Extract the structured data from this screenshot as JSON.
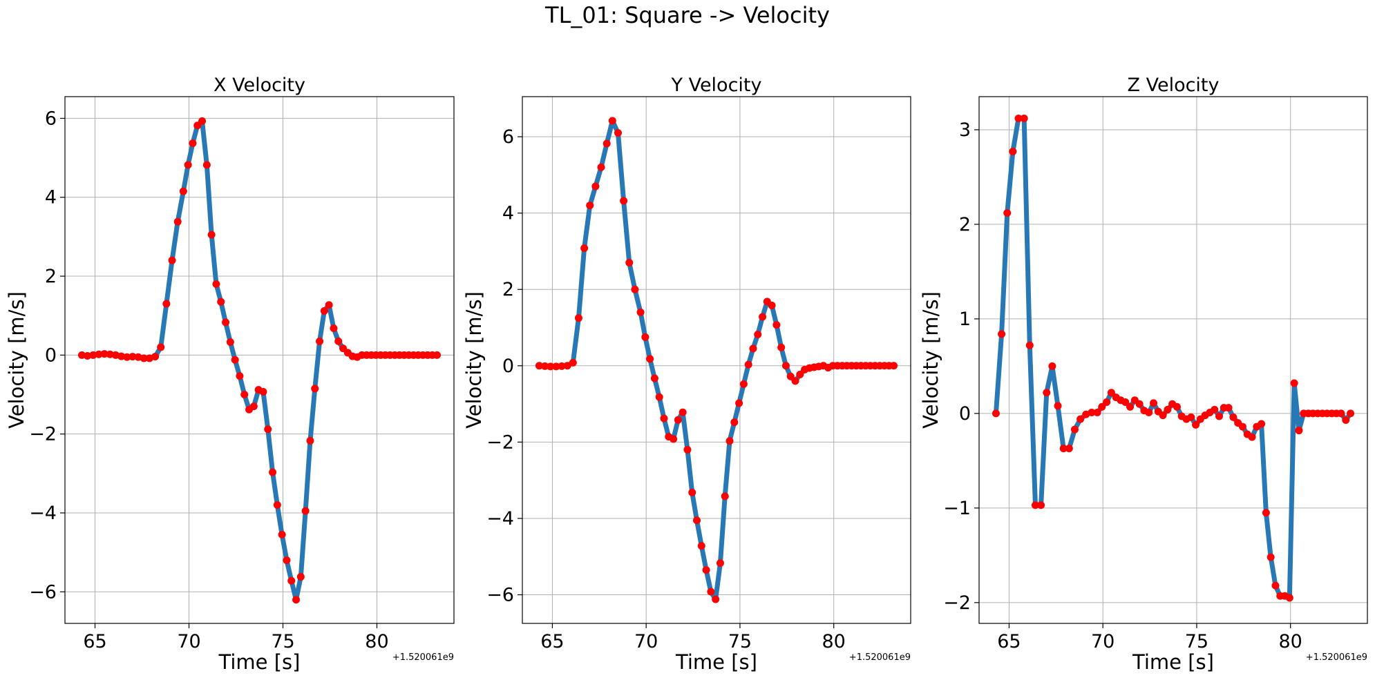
{
  "figure": {
    "suptitle": "TL_01: Square -> Velocity"
  },
  "chart_data": [
    {
      "type": "line",
      "title": "X Velocity",
      "xlabel": "Time [s]",
      "ylabel": "Velocity [m/s]",
      "x_offset_label": "+1.520061e9",
      "xlim": [
        63.4,
        84.1
      ],
      "ylim": [
        -6.8,
        6.55
      ],
      "xticks": [
        65,
        70,
        75,
        80
      ],
      "yticks": [
        -6,
        -4,
        -2,
        0,
        2,
        4,
        6
      ],
      "grid": true,
      "colors": {
        "line": "#2878b5",
        "marker": "#ff0000"
      },
      "x": [
        64.3,
        64.6,
        64.9,
        65.2,
        65.5,
        65.8,
        66.1,
        66.4,
        66.7,
        67.0,
        67.3,
        67.6,
        67.9,
        68.2,
        68.5,
        68.8,
        69.1,
        69.4,
        69.7,
        69.95,
        70.2,
        70.45,
        70.7,
        70.95,
        71.2,
        71.45,
        71.7,
        71.95,
        72.2,
        72.45,
        72.7,
        72.95,
        73.2,
        73.45,
        73.7,
        73.95,
        74.2,
        74.45,
        74.7,
        74.95,
        75.2,
        75.45,
        75.7,
        75.95,
        76.2,
        76.45,
        76.7,
        76.95,
        77.2,
        77.45,
        77.7,
        77.95,
        78.2,
        78.45,
        78.7,
        78.95,
        79.2,
        79.45,
        79.7,
        79.95,
        80.2,
        80.45,
        80.7,
        80.95,
        81.2,
        81.45,
        81.7,
        81.95,
        82.2,
        82.45,
        82.7,
        82.95,
        83.2
      ],
      "y": [
        0.0,
        -0.02,
        0.0,
        0.02,
        0.03,
        0.02,
        0.0,
        -0.03,
        -0.05,
        -0.04,
        -0.05,
        -0.08,
        -0.08,
        -0.04,
        0.2,
        1.3,
        2.4,
        3.38,
        4.15,
        4.82,
        5.37,
        5.82,
        5.93,
        4.82,
        3.05,
        1.8,
        1.35,
        0.83,
        0.33,
        -0.12,
        -0.53,
        -1.0,
        -1.38,
        -1.3,
        -0.88,
        -0.93,
        -1.88,
        -2.97,
        -3.8,
        -4.55,
        -5.2,
        -5.72,
        -6.2,
        -5.62,
        -3.95,
        -2.17,
        -0.85,
        0.35,
        1.12,
        1.27,
        0.68,
        0.35,
        0.17,
        0.06,
        -0.03,
        -0.05,
        0.0,
        0.0,
        0.0,
        0.0,
        0.0,
        0.0,
        0.0,
        0.0,
        0.0,
        0.0,
        0.0,
        0.0,
        0.0,
        0.0,
        0.0,
        0.0,
        0.0
      ]
    },
    {
      "type": "line",
      "title": "Y Velocity",
      "xlabel": "Time [s]",
      "ylabel": "Velocity [m/s]",
      "x_offset_label": "+1.520061e9",
      "xlim": [
        63.4,
        84.1
      ],
      "ylim": [
        -6.75,
        7.05
      ],
      "xticks": [
        65,
        70,
        75,
        80
      ],
      "yticks": [
        -6,
        -4,
        -2,
        0,
        2,
        4,
        6
      ],
      "grid": true,
      "colors": {
        "line": "#2878b5",
        "marker": "#ff0000"
      },
      "x": [
        64.3,
        64.6,
        64.9,
        65.2,
        65.5,
        65.8,
        66.1,
        66.4,
        66.7,
        67.0,
        67.3,
        67.6,
        67.9,
        68.2,
        68.5,
        68.8,
        69.1,
        69.4,
        69.7,
        69.95,
        70.2,
        70.45,
        70.7,
        70.95,
        71.2,
        71.45,
        71.7,
        71.95,
        72.2,
        72.45,
        72.7,
        72.95,
        73.2,
        73.45,
        73.7,
        73.95,
        74.2,
        74.45,
        74.7,
        74.95,
        75.2,
        75.45,
        75.7,
        75.95,
        76.2,
        76.45,
        76.7,
        76.95,
        77.2,
        77.45,
        77.7,
        77.95,
        78.2,
        78.45,
        78.7,
        78.95,
        79.2,
        79.45,
        79.7,
        79.95,
        80.2,
        80.45,
        80.7,
        80.95,
        81.2,
        81.45,
        81.7,
        81.95,
        82.2,
        82.45,
        82.7,
        82.95,
        83.2
      ],
      "y": [
        0.0,
        -0.01,
        -0.02,
        -0.02,
        -0.01,
        0.0,
        0.08,
        1.25,
        3.08,
        4.2,
        4.7,
        5.2,
        5.82,
        6.42,
        6.1,
        4.32,
        2.7,
        2.0,
        1.4,
        0.75,
        0.18,
        -0.33,
        -0.82,
        -1.38,
        -1.86,
        -1.92,
        -1.42,
        -1.22,
        -2.2,
        -3.32,
        -4.05,
        -4.72,
        -5.35,
        -5.92,
        -6.12,
        -5.17,
        -3.42,
        -1.97,
        -1.48,
        -0.98,
        -0.48,
        0.03,
        0.45,
        0.82,
        1.28,
        1.68,
        1.58,
        1.07,
        0.48,
        0.0,
        -0.28,
        -0.4,
        -0.23,
        -0.1,
        -0.06,
        -0.04,
        -0.02,
        0.0,
        -0.05,
        0.0,
        0.0,
        0.0,
        0.0,
        0.0,
        0.0,
        0.0,
        0.0,
        0.0,
        0.0,
        0.0,
        0.0,
        0.0,
        0.0
      ]
    },
    {
      "type": "line",
      "title": "Z Velocity",
      "xlabel": "Time [s]",
      "ylabel": "Velocity [m/s]",
      "x_offset_label": "+1.520061e9",
      "xlim": [
        63.4,
        84.1
      ],
      "ylim": [
        -2.22,
        3.35
      ],
      "xticks": [
        65,
        70,
        75,
        80
      ],
      "yticks": [
        -2,
        -1,
        0,
        1,
        2,
        3
      ],
      "grid": true,
      "colors": {
        "line": "#2878b5",
        "marker": "#ff0000"
      },
      "x": [
        64.3,
        64.6,
        64.9,
        65.2,
        65.5,
        65.8,
        66.1,
        66.4,
        66.7,
        67.0,
        67.3,
        67.6,
        67.9,
        68.2,
        68.5,
        68.8,
        69.1,
        69.4,
        69.7,
        69.95,
        70.2,
        70.45,
        70.7,
        70.95,
        71.2,
        71.45,
        71.7,
        71.95,
        72.2,
        72.45,
        72.7,
        72.95,
        73.2,
        73.45,
        73.7,
        73.95,
        74.2,
        74.45,
        74.7,
        74.95,
        75.2,
        75.45,
        75.7,
        75.95,
        76.2,
        76.45,
        76.7,
        76.95,
        77.2,
        77.45,
        77.7,
        77.95,
        78.2,
        78.45,
        78.7,
        78.95,
        79.2,
        79.45,
        79.7,
        79.95,
        80.2,
        80.45,
        80.7,
        80.95,
        81.2,
        81.45,
        81.7,
        81.95,
        82.2,
        82.45,
        82.7,
        82.95,
        83.2
      ],
      "y": [
        0.0,
        0.84,
        2.12,
        2.77,
        3.12,
        3.12,
        0.72,
        -0.97,
        -0.97,
        0.22,
        0.5,
        0.08,
        -0.37,
        -0.37,
        -0.17,
        -0.06,
        -0.01,
        0.01,
        0.01,
        0.07,
        0.12,
        0.22,
        0.17,
        0.14,
        0.12,
        0.07,
        0.14,
        0.1,
        0.03,
        0.01,
        0.11,
        0.02,
        -0.02,
        0.04,
        0.1,
        0.07,
        -0.03,
        -0.06,
        -0.04,
        -0.12,
        -0.06,
        -0.02,
        0.01,
        0.04,
        -0.03,
        0.06,
        0.06,
        -0.04,
        -0.1,
        -0.14,
        -0.22,
        -0.25,
        -0.14,
        -0.11,
        -1.05,
        -1.52,
        -1.82,
        -1.93,
        -1.93,
        -1.95,
        0.32,
        -0.18,
        0.0,
        0.0,
        0.0,
        0.0,
        0.0,
        0.0,
        0.0,
        0.0,
        0.0,
        -0.07,
        0.0
      ]
    }
  ]
}
